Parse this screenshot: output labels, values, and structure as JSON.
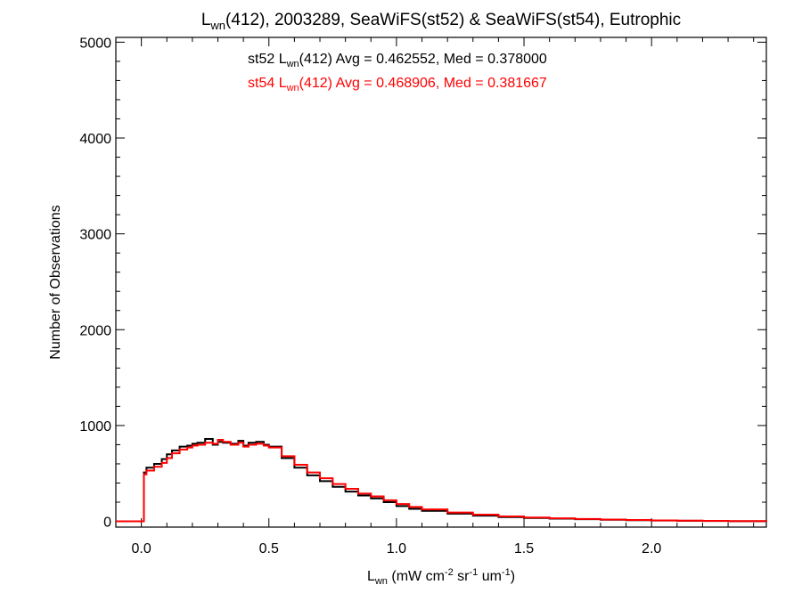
{
  "chart_data": {
    "type": "line",
    "title": {
      "main": "L",
      "sub": "wn",
      "rest": "(412), 2003289, SeaWiFS(st52) & SeaWiFS(st54), Eutrophic"
    },
    "xlabel": {
      "main": "L",
      "sub": "wn",
      "p1": " (mW cm",
      "s1": "-2",
      "p2": " sr",
      "s2": "-1",
      "p3": " um",
      "s3": "-1",
      "p4": ")"
    },
    "ylabel": "Number of Observations",
    "xlim": [
      -0.1,
      2.45
    ],
    "ylim": [
      -60,
      5050
    ],
    "x_ticks": [
      0.0,
      0.5,
      1.0,
      1.5,
      2.0
    ],
    "x_tick_labels": [
      "0.0",
      "0.5",
      "1.0",
      "1.5",
      "2.0"
    ],
    "y_ticks": [
      0,
      1000,
      2000,
      3000,
      4000,
      5000
    ],
    "y_tick_labels": [
      "0",
      "1000",
      "2000",
      "3000",
      "4000",
      "5000"
    ],
    "grid": false,
    "annotations": [
      {
        "id": "st52",
        "color": "#000000",
        "pre": "st52 L",
        "sub": "wn",
        "post": "(412) Avg = 0.462552, Med = 0.378000"
      },
      {
        "id": "st54",
        "color": "#ff0000",
        "pre": "st54 L",
        "sub": "wn",
        "post": "(412) Avg = 0.468906, Med = 0.381667"
      }
    ],
    "series": [
      {
        "id": "st52",
        "color": "#000000",
        "x": [
          -0.1,
          0.0,
          0.01,
          0.02,
          0.05,
          0.08,
          0.1,
          0.12,
          0.15,
          0.18,
          0.2,
          0.22,
          0.25,
          0.28,
          0.3,
          0.32,
          0.35,
          0.38,
          0.4,
          0.42,
          0.45,
          0.48,
          0.5,
          0.55,
          0.6,
          0.65,
          0.7,
          0.75,
          0.8,
          0.85,
          0.9,
          0.95,
          1.0,
          1.05,
          1.1,
          1.2,
          1.3,
          1.4,
          1.5,
          1.6,
          1.7,
          1.8,
          1.9,
          2.0,
          2.1,
          2.2,
          2.3,
          2.45
        ],
        "y": [
          0,
          0,
          510,
          560,
          600,
          650,
          700,
          740,
          780,
          790,
          810,
          820,
          860,
          800,
          830,
          820,
          810,
          840,
          790,
          820,
          830,
          800,
          780,
          660,
          560,
          480,
          420,
          360,
          310,
          270,
          240,
          200,
          160,
          130,
          110,
          80,
          60,
          45,
          35,
          28,
          22,
          17,
          12,
          9,
          6,
          4,
          2,
          0
        ]
      },
      {
        "id": "st54",
        "color": "#ff0000",
        "x": [
          -0.1,
          0.0,
          0.01,
          0.02,
          0.05,
          0.08,
          0.1,
          0.12,
          0.15,
          0.18,
          0.2,
          0.22,
          0.25,
          0.28,
          0.3,
          0.32,
          0.35,
          0.38,
          0.4,
          0.42,
          0.45,
          0.48,
          0.5,
          0.55,
          0.6,
          0.65,
          0.7,
          0.75,
          0.8,
          0.85,
          0.9,
          0.95,
          1.0,
          1.05,
          1.1,
          1.2,
          1.3,
          1.4,
          1.5,
          1.6,
          1.7,
          1.8,
          1.9,
          2.0,
          2.1,
          2.2,
          2.3,
          2.45
        ],
        "y": [
          0,
          0,
          490,
          530,
          570,
          610,
          660,
          710,
          750,
          770,
          790,
          800,
          820,
          810,
          850,
          830,
          800,
          820,
          780,
          800,
          810,
          790,
          770,
          680,
          590,
          510,
          450,
          390,
          340,
          290,
          260,
          220,
          180,
          150,
          125,
          92,
          70,
          52,
          40,
          32,
          25,
          19,
          14,
          10,
          7,
          5,
          3,
          0
        ]
      }
    ]
  }
}
